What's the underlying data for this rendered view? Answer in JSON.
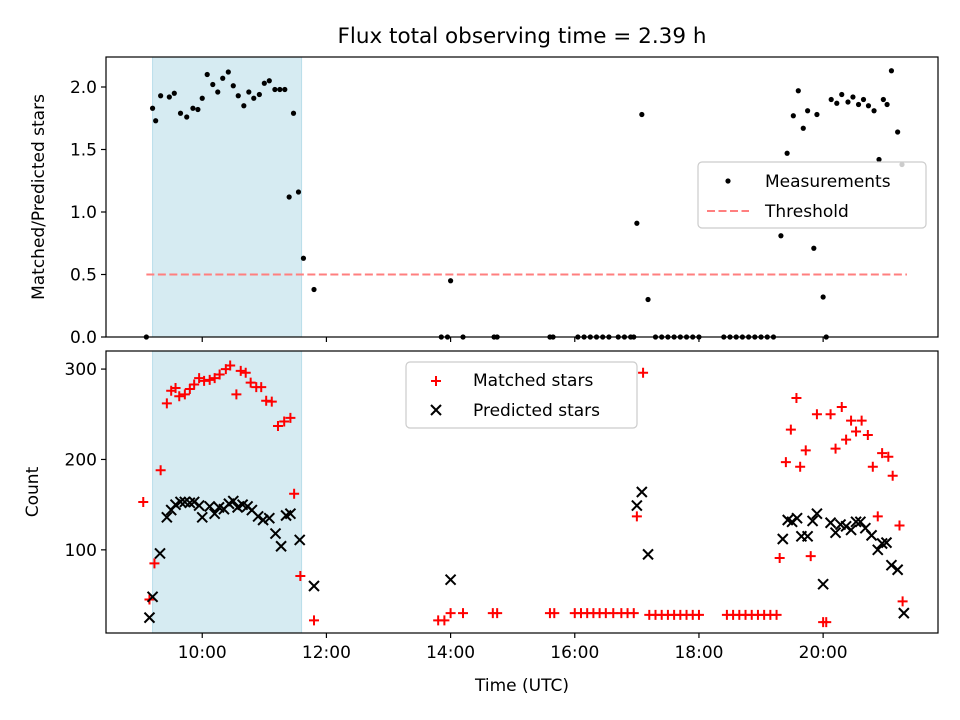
{
  "chart_data": [
    {
      "type": "scatter",
      "title": "Flux total observing time = 2.39 h",
      "xlabel": "",
      "ylabel": "Matched/Predicted stars",
      "xlim": [
        8.45,
        21.85
      ],
      "ylim": [
        0,
        2.24
      ],
      "x_ticks": [
        10,
        12,
        14,
        16,
        18,
        20
      ],
      "y_ticks": [
        0.0,
        0.5,
        1.0,
        1.5,
        2.0
      ],
      "y_tick_labels": [
        "0.0",
        "0.5",
        "1.0",
        "1.5",
        "2.0"
      ],
      "highlight_span": [
        9.2,
        11.6
      ],
      "threshold": {
        "value": 0.5,
        "x_range": [
          9.1,
          21.35
        ],
        "label": "Threshold",
        "color": "#ff7f7f"
      },
      "legend": {
        "position": "center-right",
        "entries": [
          "Measurements",
          "Threshold"
        ]
      },
      "series": [
        {
          "name": "Measurements",
          "marker": "dot",
          "color": "#000000",
          "points": [
            [
              9.1,
              0.0
            ],
            [
              9.2,
              1.83
            ],
            [
              9.25,
              1.73
            ],
            [
              9.33,
              1.93
            ],
            [
              9.47,
              1.92
            ],
            [
              9.55,
              1.95
            ],
            [
              9.65,
              1.79
            ],
            [
              9.75,
              1.76
            ],
            [
              9.85,
              1.83
            ],
            [
              9.93,
              1.82
            ],
            [
              10.0,
              1.91
            ],
            [
              10.08,
              2.1
            ],
            [
              10.17,
              2.02
            ],
            [
              10.25,
              1.96
            ],
            [
              10.33,
              2.07
            ],
            [
              10.42,
              2.12
            ],
            [
              10.5,
              2.01
            ],
            [
              10.58,
              1.93
            ],
            [
              10.67,
              1.85
            ],
            [
              10.75,
              1.96
            ],
            [
              10.83,
              1.91
            ],
            [
              10.92,
              1.94
            ],
            [
              11.0,
              2.03
            ],
            [
              11.08,
              2.05
            ],
            [
              11.17,
              1.98
            ],
            [
              11.25,
              1.98
            ],
            [
              11.33,
              1.98
            ],
            [
              11.4,
              1.12
            ],
            [
              11.47,
              1.79
            ],
            [
              11.55,
              1.16
            ],
            [
              11.63,
              0.63
            ],
            [
              11.8,
              0.38
            ],
            [
              13.85,
              0.0
            ],
            [
              13.95,
              0.0
            ],
            [
              14.0,
              0.45
            ],
            [
              14.2,
              0.0
            ],
            [
              14.7,
              0.0
            ],
            [
              14.75,
              0.0
            ],
            [
              15.6,
              0.0
            ],
            [
              15.65,
              0.0
            ],
            [
              16.05,
              0.0
            ],
            [
              16.15,
              0.0
            ],
            [
              16.25,
              0.0
            ],
            [
              16.35,
              0.0
            ],
            [
              16.45,
              0.0
            ],
            [
              16.55,
              0.0
            ],
            [
              16.7,
              0.0
            ],
            [
              16.8,
              0.0
            ],
            [
              16.9,
              0.0
            ],
            [
              16.95,
              0.0
            ],
            [
              17.0,
              0.91
            ],
            [
              17.08,
              1.78
            ],
            [
              17.18,
              0.3
            ],
            [
              17.3,
              0.0
            ],
            [
              17.4,
              0.0
            ],
            [
              17.5,
              0.0
            ],
            [
              17.6,
              0.0
            ],
            [
              17.7,
              0.0
            ],
            [
              17.8,
              0.0
            ],
            [
              17.9,
              0.0
            ],
            [
              18.0,
              0.0
            ],
            [
              18.4,
              0.0
            ],
            [
              18.5,
              0.0
            ],
            [
              18.6,
              0.0
            ],
            [
              18.7,
              0.0
            ],
            [
              18.8,
              0.0
            ],
            [
              18.9,
              0.0
            ],
            [
              19.0,
              0.0
            ],
            [
              19.1,
              0.0
            ],
            [
              19.2,
              0.0
            ],
            [
              19.32,
              0.81
            ],
            [
              19.42,
              1.47
            ],
            [
              19.52,
              1.77
            ],
            [
              19.6,
              1.97
            ],
            [
              19.68,
              1.67
            ],
            [
              19.75,
              1.81
            ],
            [
              19.85,
              0.71
            ],
            [
              19.9,
              1.78
            ],
            [
              20.0,
              0.32
            ],
            [
              20.05,
              0.0
            ],
            [
              20.13,
              1.9
            ],
            [
              20.22,
              1.87
            ],
            [
              20.3,
              1.94
            ],
            [
              20.4,
              1.88
            ],
            [
              20.48,
              1.92
            ],
            [
              20.57,
              1.86
            ],
            [
              20.65,
              1.9
            ],
            [
              20.73,
              1.85
            ],
            [
              20.82,
              1.81
            ],
            [
              20.9,
              1.42
            ],
            [
              20.97,
              1.9
            ],
            [
              21.03,
              1.86
            ],
            [
              21.1,
              2.13
            ],
            [
              21.2,
              1.64
            ],
            [
              21.27,
              1.38
            ]
          ]
        }
      ]
    },
    {
      "type": "scatter",
      "title": "",
      "xlabel": "Time (UTC)",
      "ylabel": "Count",
      "xlim": [
        8.45,
        21.85
      ],
      "ylim": [
        8,
        320
      ],
      "x_ticks": [
        10,
        12,
        14,
        16,
        18,
        20
      ],
      "x_tick_labels": [
        "10:00",
        "12:00",
        "14:00",
        "16:00",
        "18:00",
        "20:00"
      ],
      "y_ticks": [
        100,
        200,
        300
      ],
      "y_tick_labels": [
        "100",
        "200",
        "300"
      ],
      "highlight_span": [
        9.2,
        11.6
      ],
      "legend": {
        "position": "top-center",
        "entries": [
          "Matched stars",
          "Predicted stars"
        ]
      },
      "series": [
        {
          "name": "Matched stars",
          "marker": "plus",
          "color": "#ff0000",
          "points": [
            [
              9.05,
              153
            ],
            [
              9.15,
              45
            ],
            [
              9.23,
              85
            ],
            [
              9.33,
              188
            ],
            [
              9.43,
              262
            ],
            [
              9.5,
              276
            ],
            [
              9.57,
              279
            ],
            [
              9.63,
              270
            ],
            [
              9.72,
              272
            ],
            [
              9.8,
              278
            ],
            [
              9.87,
              283
            ],
            [
              9.95,
              290
            ],
            [
              10.03,
              287
            ],
            [
              10.12,
              288
            ],
            [
              10.2,
              290
            ],
            [
              10.28,
              294
            ],
            [
              10.38,
              300
            ],
            [
              10.45,
              304
            ],
            [
              10.55,
              272
            ],
            [
              10.62,
              298
            ],
            [
              10.7,
              296
            ],
            [
              10.78,
              285
            ],
            [
              10.87,
              280
            ],
            [
              10.95,
              280
            ],
            [
              11.03,
              265
            ],
            [
              11.12,
              264
            ],
            [
              11.22,
              237
            ],
            [
              11.32,
              242
            ],
            [
              11.42,
              246
            ],
            [
              11.48,
              162
            ],
            [
              11.58,
              71
            ],
            [
              11.8,
              22
            ],
            [
              13.8,
              22
            ],
            [
              13.9,
              22
            ],
            [
              14.0,
              30
            ],
            [
              14.2,
              30
            ],
            [
              14.68,
              30
            ],
            [
              14.75,
              30
            ],
            [
              15.6,
              30
            ],
            [
              15.67,
              30
            ],
            [
              16.0,
              30
            ],
            [
              16.1,
              30
            ],
            [
              16.2,
              30
            ],
            [
              16.3,
              30
            ],
            [
              16.4,
              30
            ],
            [
              16.5,
              30
            ],
            [
              16.62,
              30
            ],
            [
              16.75,
              30
            ],
            [
              16.85,
              30
            ],
            [
              16.95,
              30
            ],
            [
              17.0,
              137
            ],
            [
              17.1,
              296
            ],
            [
              17.2,
              28
            ],
            [
              17.3,
              28
            ],
            [
              17.4,
              28
            ],
            [
              17.5,
              28
            ],
            [
              17.6,
              28
            ],
            [
              17.7,
              28
            ],
            [
              17.8,
              28
            ],
            [
              17.9,
              28
            ],
            [
              18.0,
              28
            ],
            [
              18.45,
              28
            ],
            [
              18.55,
              28
            ],
            [
              18.65,
              28
            ],
            [
              18.75,
              28
            ],
            [
              18.85,
              28
            ],
            [
              18.95,
              28
            ],
            [
              19.05,
              28
            ],
            [
              19.15,
              28
            ],
            [
              19.25,
              28
            ],
            [
              19.3,
              91
            ],
            [
              19.4,
              197
            ],
            [
              19.48,
              233
            ],
            [
              19.57,
              268
            ],
            [
              19.63,
              192
            ],
            [
              19.72,
              210
            ],
            [
              19.8,
              93
            ],
            [
              19.9,
              250
            ],
            [
              20.0,
              20
            ],
            [
              20.05,
              20
            ],
            [
              20.12,
              250
            ],
            [
              20.2,
              212
            ],
            [
              20.3,
              258
            ],
            [
              20.37,
              222
            ],
            [
              20.45,
              243
            ],
            [
              20.53,
              231
            ],
            [
              20.62,
              243
            ],
            [
              20.72,
              227
            ],
            [
              20.8,
              192
            ],
            [
              20.88,
              137
            ],
            [
              20.95,
              207
            ],
            [
              21.05,
              203
            ],
            [
              21.12,
              182
            ],
            [
              21.23,
              127
            ],
            [
              21.28,
              43
            ]
          ]
        },
        {
          "name": "Predicted stars",
          "marker": "x",
          "color": "#000000",
          "points": [
            [
              9.15,
              25
            ],
            [
              9.2,
              48
            ],
            [
              9.32,
              96
            ],
            [
              9.43,
              136
            ],
            [
              9.5,
              144
            ],
            [
              9.57,
              150
            ],
            [
              9.65,
              153
            ],
            [
              9.72,
              153
            ],
            [
              9.8,
              152
            ],
            [
              9.87,
              153
            ],
            [
              9.95,
              149
            ],
            [
              10.0,
              136
            ],
            [
              10.12,
              148
            ],
            [
              10.2,
              140
            ],
            [
              10.27,
              147
            ],
            [
              10.35,
              145
            ],
            [
              10.43,
              151
            ],
            [
              10.5,
              154
            ],
            [
              10.57,
              147
            ],
            [
              10.65,
              150
            ],
            [
              10.73,
              148
            ],
            [
              10.8,
              144
            ],
            [
              10.9,
              137
            ],
            [
              10.98,
              133
            ],
            [
              11.08,
              135
            ],
            [
              11.18,
              118
            ],
            [
              11.27,
              104
            ],
            [
              11.35,
              138
            ],
            [
              11.42,
              140
            ],
            [
              11.57,
              111
            ],
            [
              11.8,
              60
            ],
            [
              14.0,
              67
            ],
            [
              17.0,
              149
            ],
            [
              17.08,
              164
            ],
            [
              17.18,
              95
            ],
            [
              19.35,
              112
            ],
            [
              19.43,
              133
            ],
            [
              19.5,
              131
            ],
            [
              19.58,
              135
            ],
            [
              19.65,
              115
            ],
            [
              19.75,
              115
            ],
            [
              19.83,
              132
            ],
            [
              19.9,
              140
            ],
            [
              20.0,
              62
            ],
            [
              20.12,
              130
            ],
            [
              20.2,
              119
            ],
            [
              20.28,
              128
            ],
            [
              20.37,
              126
            ],
            [
              20.45,
              122
            ],
            [
              20.53,
              131
            ],
            [
              20.6,
              131
            ],
            [
              20.68,
              124
            ],
            [
              20.78,
              116
            ],
            [
              20.88,
              100
            ],
            [
              20.95,
              107
            ],
            [
              21.02,
              108
            ],
            [
              21.1,
              83
            ],
            [
              21.2,
              78
            ],
            [
              21.3,
              30
            ]
          ]
        }
      ]
    }
  ]
}
